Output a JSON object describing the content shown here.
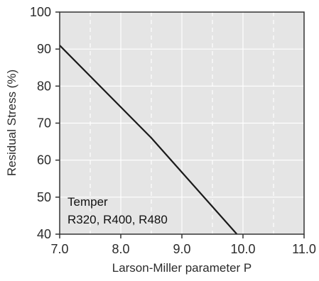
{
  "chart_data": {
    "type": "line",
    "title": "",
    "xlabel": "Larson-Miller parameter P",
    "ylabel": "Residual Stress (%)",
    "xlim": [
      7.0,
      11.0
    ],
    "ylim": [
      40,
      100
    ],
    "x_ticks": [
      7.0,
      8.0,
      9.0,
      10.0,
      11.0
    ],
    "x_tick_labels": [
      "7.0",
      "8.0",
      "9.0",
      "10.0",
      "11.0"
    ],
    "y_ticks": [
      40,
      50,
      60,
      70,
      80,
      90,
      100
    ],
    "y_tick_labels": [
      "40",
      "50",
      "60",
      "70",
      "80",
      "90",
      "100"
    ],
    "grid": true,
    "minor_x_grid_dashed": [
      7.5,
      8.5,
      9.5,
      10.5
    ],
    "series": [
      {
        "name": "",
        "x": [
          7.0,
          8.5,
          9.9
        ],
        "y": [
          91,
          66,
          40
        ]
      }
    ],
    "annotations": [
      {
        "text": "Temper"
      },
      {
        "text": "R320, R400, R480"
      }
    ],
    "colors": {
      "background": "#e5e5e5",
      "grid": "#ffffff",
      "line": "#1a1a1a",
      "axis": "#333333"
    }
  }
}
